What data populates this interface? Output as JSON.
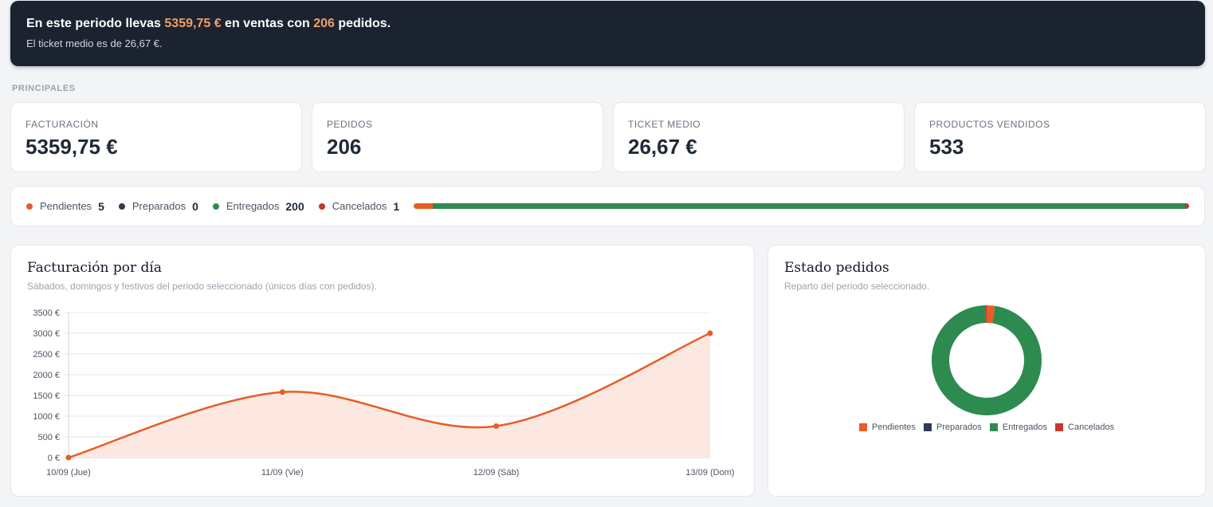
{
  "banner": {
    "prefix": "En este periodo llevas",
    "sales_amount": "5359,75 €",
    "middle": "en ventas con",
    "orders_count": "206",
    "suffix": "pedidos.",
    "avg_ticket_text": "El ticket medio es de 26,67 €."
  },
  "section_label": "PRINCIPALES",
  "kpis": [
    {
      "label": "FACTURACIÓN",
      "value": "5359,75 €"
    },
    {
      "label": "PEDIDOS",
      "value": "206"
    },
    {
      "label": "TICKET MEDIO",
      "value": "26,67 €"
    },
    {
      "label": "PRODUCTOS VENDIDOS",
      "value": "533"
    }
  ],
  "statuses": [
    {
      "label": "Pendientes",
      "count": "5",
      "color": "#e85d25"
    },
    {
      "label": "Preparados",
      "count": "0",
      "color": "#2f3b52"
    },
    {
      "label": "Entregados",
      "count": "200",
      "color": "#2e8b50"
    },
    {
      "label": "Cancelados",
      "count": "1",
      "color": "#c0392b"
    }
  ],
  "line_card": {
    "title": "Facturación por día",
    "subtitle": "Sábados, domingos y festivos del periodo seleccionado (únicos días con pedidos)."
  },
  "donut_card": {
    "title": "Estado pedidos",
    "subtitle": "Reparto del periodo seleccionado."
  },
  "colors": {
    "line": "#e85d25",
    "area": "#fce8e1",
    "grid": "#e5e7eb"
  },
  "chart_data": [
    {
      "type": "line",
      "categories": [
        "10/09 (Jue)",
        "11/09 (Vie)",
        "12/09 (Sáb)",
        "13/09 (Dom)"
      ],
      "values": [
        0,
        1580,
        760,
        3000
      ],
      "y_tick_labels": [
        "0 €",
        "500 €",
        "1000 €",
        "1500 €",
        "2000 €",
        "2500 €",
        "3000 €",
        "3500 €"
      ],
      "ylim": [
        0,
        3500
      ],
      "grid": true,
      "fill": true
    },
    {
      "type": "pie",
      "donut": true,
      "labels": [
        "Pendientes",
        "Preparados",
        "Entregados",
        "Cancelados"
      ],
      "values": [
        5,
        0,
        200,
        1
      ],
      "legend_position": "bottom"
    }
  ]
}
